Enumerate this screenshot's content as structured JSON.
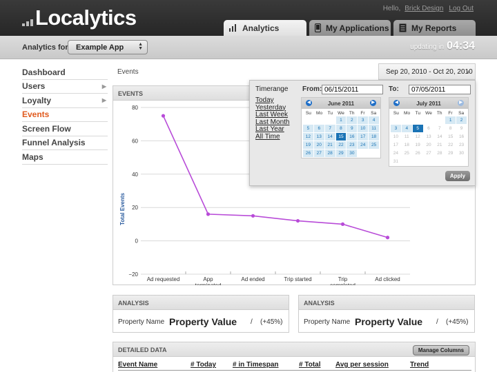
{
  "header": {
    "logo_text": "Localytics",
    "greeting": "Hello,",
    "user_name": "Brick Design",
    "logout": "Log Out",
    "tabs": [
      {
        "label": "Analytics",
        "icon": "bar-chart-icon",
        "active": true
      },
      {
        "label": "My Applications",
        "icon": "device-icon",
        "active": false
      },
      {
        "label": "My Reports",
        "icon": "report-icon",
        "active": false
      }
    ]
  },
  "subbar": {
    "analytics_for_label": "Analytics for:",
    "selected_app": "Example App",
    "updating_label": "updating in",
    "updating_time": "04:34"
  },
  "sidebar": {
    "items": [
      {
        "label": "Dashboard",
        "has_submenu": false,
        "active": false
      },
      {
        "label": "Users",
        "has_submenu": true,
        "active": false
      },
      {
        "label": "Loyalty",
        "has_submenu": true,
        "active": false
      },
      {
        "label": "Events",
        "has_submenu": false,
        "active": true
      },
      {
        "label": "Screen Flow",
        "has_submenu": false,
        "active": false
      },
      {
        "label": "Funnel Analysis",
        "has_submenu": false,
        "active": false
      },
      {
        "label": "Maps",
        "has_submenu": false,
        "active": false
      }
    ]
  },
  "breadcrumb": "Events",
  "date_range": "Sep 20, 2010 - Oct 20, 2010",
  "events_panel": {
    "title": "EVENTS"
  },
  "timerange": {
    "label": "Timerange",
    "presets": [
      "Today",
      "Yesterday",
      "Last Week",
      "Last Month",
      "Last Year",
      "All Time"
    ],
    "from_label": "From:",
    "from_value": "06/15/2011",
    "to_label": "To:",
    "to_value": "07/05/2011",
    "dow": [
      "Su",
      "Mo",
      "Tu",
      "We",
      "Th",
      "Fr",
      "Sa"
    ],
    "calendars": [
      {
        "title": "June 2011",
        "cells": [
          "",
          "",
          "",
          "1",
          "2",
          "3",
          "4",
          "5",
          "6",
          "7",
          "8",
          "9",
          "10",
          "11",
          "12",
          "13",
          "14",
          "15",
          "16",
          "17",
          "18",
          "19",
          "20",
          "21",
          "22",
          "23",
          "24",
          "25",
          "26",
          "27",
          "28",
          "29",
          "30",
          "",
          ""
        ],
        "selected": "15"
      },
      {
        "title": "July 2011",
        "cells": [
          "",
          "",
          "",
          "",
          "",
          "1",
          "2",
          "3",
          "4",
          "5",
          "6",
          "7",
          "8",
          "9",
          "10",
          "11",
          "12",
          "13",
          "14",
          "15",
          "16",
          "17",
          "18",
          "19",
          "20",
          "21",
          "22",
          "23",
          "24",
          "25",
          "26",
          "27",
          "28",
          "29",
          "30",
          "31",
          "",
          "",
          "",
          "",
          "",
          ""
        ],
        "selected": "5"
      }
    ],
    "apply_label": "Apply"
  },
  "analysis_panels": [
    {
      "title": "ANALYSIS",
      "property_name": "Property Name",
      "property_value": "Property Value",
      "slash": "/",
      "change": "(+45%)"
    },
    {
      "title": "ANALYSIS",
      "property_name": "Property Name",
      "property_value": "Property Value",
      "slash": "/",
      "change": "(+45%)"
    }
  ],
  "detailed_data": {
    "title": "DETAILED DATA",
    "manage_columns": "Manage Columns",
    "columns": [
      "Event Name",
      "# Today",
      "# in Timespan",
      "# Total",
      "Avg per session",
      "Trend"
    ]
  },
  "colors": {
    "accent": "#e05a1e",
    "line": "#b84bd8",
    "calendar_selected": "#1a73b5",
    "calendar_range": "#d6e9f4"
  },
  "chart_data": {
    "type": "line",
    "ylabel": "Total Events",
    "xlabel": "",
    "ylim": [
      -20,
      80
    ],
    "yticks": [
      80,
      60,
      40,
      20,
      0,
      -20
    ],
    "categories": [
      "Ad requested",
      "App terminated",
      "Ad ended",
      "Trip started",
      "Trip completed",
      "Ad clicked"
    ],
    "values": [
      75,
      16,
      15,
      12,
      10,
      2
    ],
    "grid": true
  }
}
